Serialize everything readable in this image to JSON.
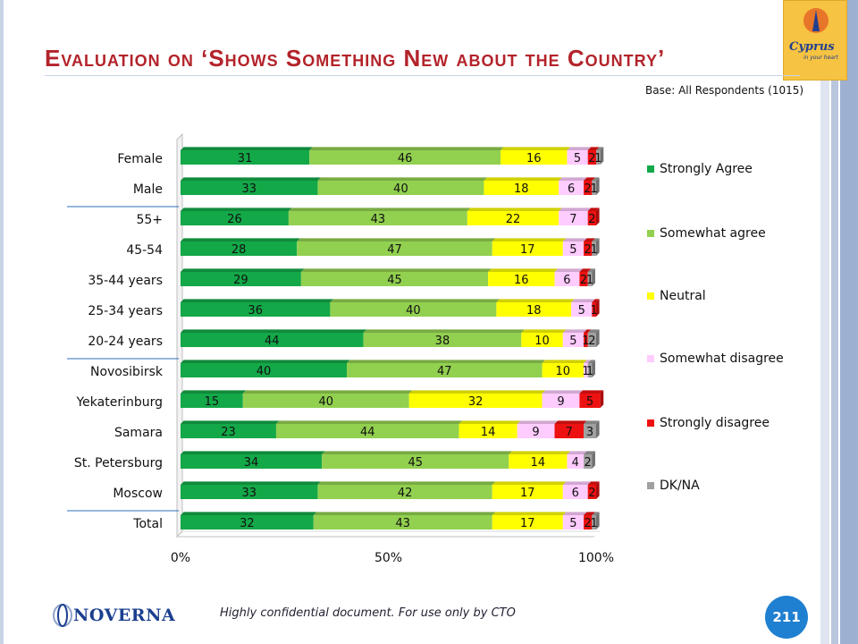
{
  "slide": {
    "title": "Evaluation on ‘Shows Something New about the Country’",
    "base_note": "Base: All Respondents (1015)",
    "footer_note": "Highly confidential document. For use only by CTO",
    "page_number": "211",
    "logo_top": {
      "text": "Cyprus",
      "subtext": "in your heart",
      "icon": "cyprus-logo"
    },
    "logo_bottom": {
      "text": "NOVERNA",
      "icon": "noverna-logo"
    }
  },
  "chart_data": {
    "type": "bar",
    "orientation": "horizontal",
    "stacked": true,
    "percent_stacked": true,
    "categories": [
      "Female",
      "Male",
      "55+",
      "45-54",
      "35-44 years",
      "25-34 years",
      "20-24 years",
      "Novosibirsk",
      "Yekaterinburg",
      "Samara",
      "St. Petersburg",
      "Moscow",
      "Total"
    ],
    "group_separators_after": [
      "Male",
      "20-24 years",
      "Moscow"
    ],
    "series": [
      {
        "name": "Strongly Agree",
        "color": "#13a848",
        "values": [
          31,
          33,
          26,
          28,
          29,
          36,
          44,
          40,
          15,
          23,
          34,
          33,
          32
        ],
        "labels": [
          "31",
          "33",
          "26",
          "28",
          "29",
          "36",
          "44",
          "40",
          "15",
          "23",
          "34",
          "33",
          "32"
        ]
      },
      {
        "name": "Somewhat agree",
        "color": "#92d050",
        "values": [
          46,
          40,
          43,
          47,
          45,
          40,
          38,
          47,
          40,
          44,
          45,
          42,
          43
        ],
        "labels": [
          "46",
          "40",
          "43",
          "47",
          "45",
          "40",
          "38",
          "47",
          "40",
          "44",
          "45",
          "42",
          "43"
        ]
      },
      {
        "name": "Neutral",
        "color": "#ffff00",
        "values": [
          16,
          18,
          22,
          17,
          16,
          18,
          10,
          10,
          32,
          14,
          14,
          17,
          17
        ],
        "labels": [
          "16",
          "18",
          "22",
          "17",
          "16",
          "18",
          "10",
          "10",
          "32",
          "14",
          "14",
          "17",
          "17"
        ]
      },
      {
        "name": "Somewhat disagree",
        "color": "#ffccff",
        "values": [
          5,
          6,
          7,
          5,
          6,
          5,
          5,
          1,
          9,
          9,
          4,
          6,
          5
        ],
        "labels": [
          "5",
          "6",
          "7",
          "5",
          "6",
          "5",
          "5",
          "1",
          "9",
          "9",
          "4",
          "6",
          "5"
        ]
      },
      {
        "name": "Strongly disagree",
        "color": "#ee1111",
        "values": [
          2,
          2,
          2,
          2,
          2,
          1,
          1,
          0,
          5,
          7,
          0,
          2,
          2
        ],
        "labels": [
          "2",
          "2",
          "2",
          "2",
          "2",
          "1",
          "1",
          "",
          "5",
          "7",
          "",
          "2",
          "2"
        ]
      },
      {
        "name": "DK/NA",
        "color": "#a0a0a0",
        "values": [
          1,
          1,
          0,
          1,
          1,
          0,
          2,
          1,
          0,
          3,
          2,
          0,
          1
        ],
        "labels": [
          "1",
          "1",
          "",
          "1",
          "1",
          "",
          "2",
          "1",
          "",
          "3",
          "2",
          "",
          "1"
        ]
      }
    ],
    "x_ticks": [
      "0%",
      "50%",
      "100%"
    ],
    "xlim": [
      0,
      100
    ],
    "legend_position": "right",
    "grid": false
  }
}
